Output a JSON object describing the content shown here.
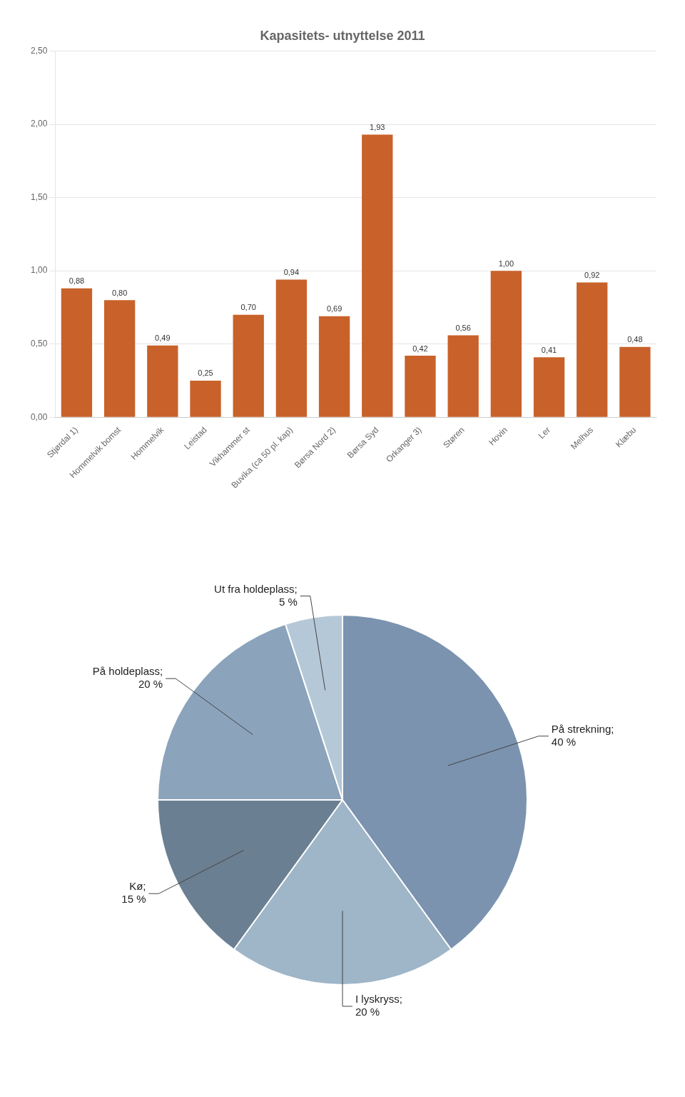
{
  "chart_data": [
    {
      "type": "bar",
      "title": "Kapasitets- utnyttelse 2011",
      "categories": [
        "Stjørdal 1)",
        "Hommelvik bomst",
        "Hommelvik",
        "Leistad",
        "Vikhammer st",
        "Buvika (ca 50 pl. kap)",
        "Børsa Nord 2)",
        "Børsa Syd",
        "Orkanger 3)",
        "Støren",
        "Hovin",
        "Ler",
        "Melhus",
        "Klæbu"
      ],
      "values": [
        0.88,
        0.8,
        0.49,
        0.25,
        0.7,
        0.94,
        0.69,
        1.93,
        0.42,
        0.56,
        1.0,
        0.41,
        0.92,
        0.48
      ],
      "value_labels": [
        "0,88",
        "0,80",
        "0,49",
        "0,25",
        "0,70",
        "0,94",
        "0,69",
        "1,93",
        "0,42",
        "0,56",
        "1,00",
        "0,41",
        "0,92",
        "0,48"
      ],
      "color": "#C8622A",
      "ylim": [
        0,
        2.5
      ],
      "yticks": [
        {
          "value": 0,
          "label": "0,00"
        },
        {
          "value": 0.5,
          "label": "0,50"
        },
        {
          "value": 1,
          "label": "1,00"
        },
        {
          "value": 1.5,
          "label": "1,50"
        },
        {
          "value": 2,
          "label": "2,00"
        },
        {
          "value": 2.5,
          "label": "2,50"
        }
      ],
      "grid": true,
      "data_labels": true
    },
    {
      "type": "pie",
      "categories": [
        "På strekning",
        "I lyskryss",
        "Kø",
        "På holdeplass",
        "Ut fra holdeplass"
      ],
      "values": [
        40,
        20,
        15,
        20,
        5
      ],
      "value_labels": [
        "På strekning;\n40 %",
        "I lyskryss;\n20 %",
        "Kø;\n15 %",
        "På holdeplass;\n20 %",
        "Ut fra holdeplass;\n5 %"
      ],
      "colors": [
        "#7B93AF",
        "#9FB5C8",
        "#6B7F92",
        "#8BA3BB",
        "#B5C8D8"
      ],
      "data_labels": true
    }
  ]
}
